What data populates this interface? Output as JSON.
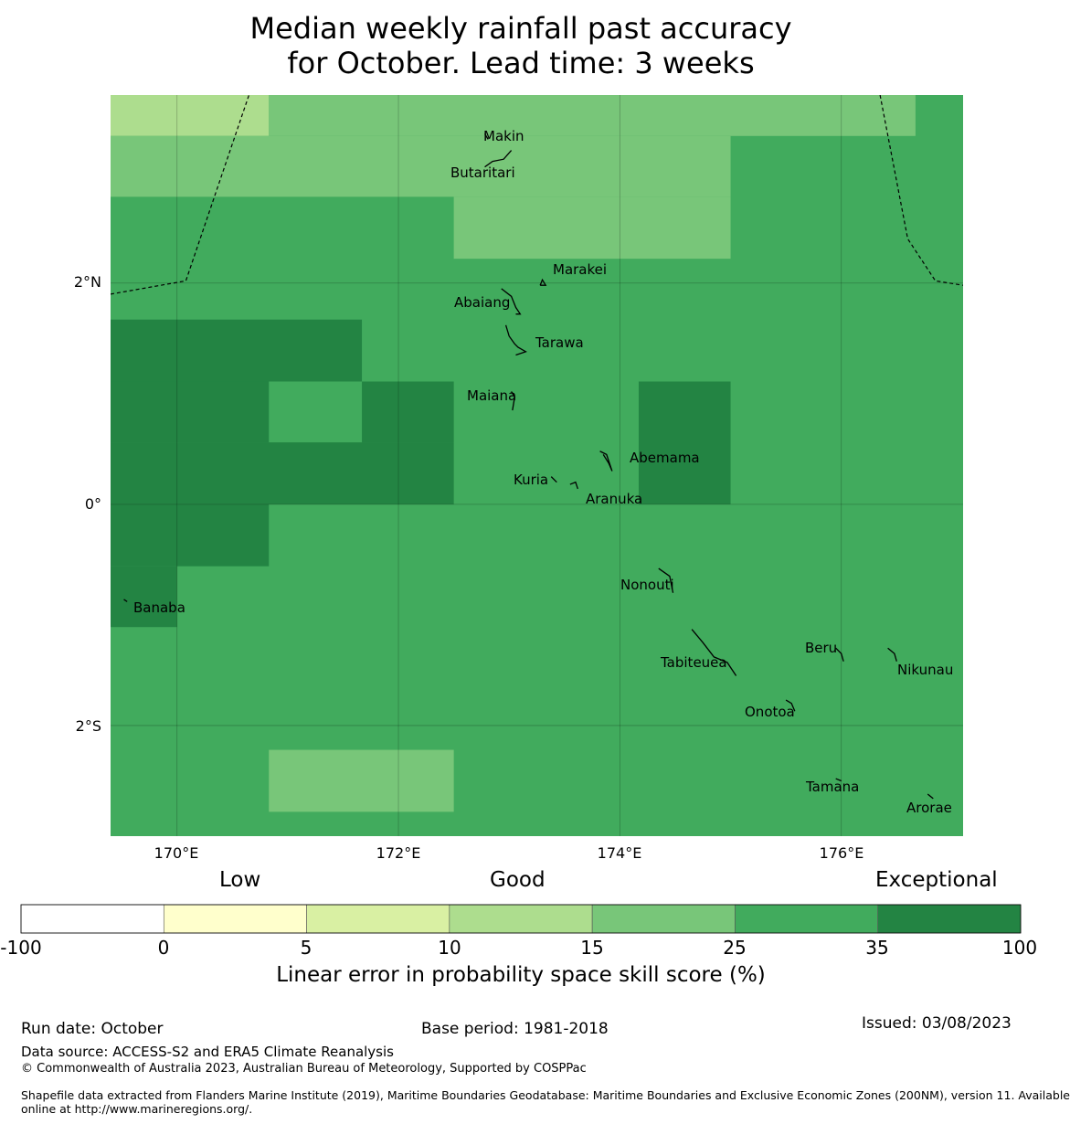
{
  "title": {
    "line1": "Median weekly rainfall past accuracy",
    "line2": "for October. Lead time: 3 weeks"
  },
  "map": {
    "lon_range": [
      169.4,
      177.1
    ],
    "lat_range": [
      -3.0,
      3.7
    ],
    "grid_step_deg": 0.556,
    "x_ticks": [
      {
        "lon": 170,
        "label": "170°E"
      },
      {
        "lon": 172,
        "label": "172°E"
      },
      {
        "lon": 174,
        "label": "174°E"
      },
      {
        "lon": 176,
        "label": "176°E"
      }
    ],
    "y_ticks": [
      {
        "lat": 2,
        "label": "2°N"
      },
      {
        "lat": 0,
        "label": "0°"
      },
      {
        "lat": -2,
        "label": "2°S"
      }
    ],
    "skill_cells": [
      {
        "lon_range": [
          169.4,
          177.1
        ],
        "lat_range": [
          -3.0,
          3.7
        ],
        "category": "25-35"
      },
      {
        "lon_range": [
          169.4,
          170.83
        ],
        "lat_range": [
          3.33,
          3.7
        ],
        "category": "10-15"
      },
      {
        "lon_range": [
          170.83,
          176.67
        ],
        "lat_range": [
          3.33,
          3.7
        ],
        "category": "15-25"
      },
      {
        "lon_range": [
          169.4,
          175.0
        ],
        "lat_range": [
          2.78,
          3.33
        ],
        "category": "15-25"
      },
      {
        "lon_range": [
          172.5,
          175.0
        ],
        "lat_range": [
          2.22,
          2.78
        ],
        "category": "15-25"
      },
      {
        "lon_range": [
          169.4,
          171.67
        ],
        "lat_range": [
          1.11,
          1.67
        ],
        "category": "35-100"
      },
      {
        "lon_range": [
          169.4,
          170.83
        ],
        "lat_range": [
          0.56,
          1.11
        ],
        "category": "35-100"
      },
      {
        "lon_range": [
          171.67,
          172.5
        ],
        "lat_range": [
          0.56,
          1.11
        ],
        "category": "35-100"
      },
      {
        "lon_range": [
          169.4,
          172.5
        ],
        "lat_range": [
          0.0,
          0.56
        ],
        "category": "35-100"
      },
      {
        "lon_range": [
          174.17,
          175.0
        ],
        "lat_range": [
          0.0,
          1.11
        ],
        "category": "35-100"
      },
      {
        "lon_range": [
          169.4,
          170.83
        ],
        "lat_range": [
          -0.56,
          0.0
        ],
        "category": "35-100"
      },
      {
        "lon_range": [
          169.4,
          170.0
        ],
        "lat_range": [
          -1.11,
          -0.56
        ],
        "category": "35-100"
      },
      {
        "lon_range": [
          170.83,
          172.5
        ],
        "lat_range": [
          -2.78,
          -2.22
        ],
        "category": "15-25"
      }
    ],
    "eez_boundaries": [
      [
        [
          169.4,
          1.9
        ],
        [
          170.08,
          2.02
        ],
        [
          170.65,
          3.7
        ]
      ],
      [
        [
          176.35,
          3.7
        ],
        [
          176.6,
          2.4
        ],
        [
          176.85,
          2.02
        ],
        [
          177.1,
          1.98
        ]
      ]
    ],
    "islands": [
      {
        "name": "Makin",
        "lon": 172.78,
        "lat": 3.32,
        "shape": [
          [
            172.78,
            3.35
          ],
          [
            172.81,
            3.3
          ]
        ]
      },
      {
        "name": "Butaritari",
        "lon": 172.95,
        "lat": 3.07,
        "shape": [
          [
            172.78,
            3.05
          ],
          [
            172.85,
            3.1
          ],
          [
            172.95,
            3.12
          ],
          [
            173.02,
            3.2
          ]
        ]
      },
      {
        "name": "Marakei",
        "lon": 173.28,
        "lat": 2.0,
        "shape": [
          [
            173.28,
            1.98
          ],
          [
            173.3,
            2.03
          ],
          [
            173.33,
            1.98
          ],
          [
            173.28,
            1.98
          ]
        ]
      },
      {
        "name": "Abaiang",
        "lon": 172.95,
        "lat": 1.83,
        "shape": [
          [
            172.93,
            1.95
          ],
          [
            173.02,
            1.88
          ],
          [
            173.06,
            1.78
          ],
          [
            173.1,
            1.72
          ],
          [
            173.06,
            1.72
          ]
        ]
      },
      {
        "name": "Tarawa",
        "lon": 173.1,
        "lat": 1.42,
        "shape": [
          [
            172.97,
            1.62
          ],
          [
            173.0,
            1.52
          ],
          [
            173.05,
            1.45
          ],
          [
            173.08,
            1.42
          ],
          [
            173.15,
            1.38
          ],
          [
            173.06,
            1.35
          ]
        ]
      },
      {
        "name": "Maiana",
        "lon": 173.0,
        "lat": 0.95,
        "shape": [
          [
            173.02,
            1.02
          ],
          [
            173.05,
            0.97
          ],
          [
            173.03,
            0.85
          ]
        ]
      },
      {
        "name": "Abemama",
        "lon": 173.85,
        "lat": 0.4,
        "shape": [
          [
            173.82,
            0.48
          ],
          [
            173.88,
            0.45
          ],
          [
            173.93,
            0.3
          ],
          [
            173.9,
            0.37
          ],
          [
            173.85,
            0.45
          ]
        ]
      },
      {
        "name": "Kuria",
        "lon": 173.4,
        "lat": 0.23,
        "shape": [
          [
            173.38,
            0.25
          ],
          [
            173.43,
            0.2
          ]
        ]
      },
      {
        "name": "Aranuka",
        "lon": 173.6,
        "lat": 0.18,
        "shape": [
          [
            173.55,
            0.18
          ],
          [
            173.6,
            0.2
          ],
          [
            173.62,
            0.14
          ]
        ]
      },
      {
        "name": "Nonouti",
        "lon": 174.45,
        "lat": -0.65,
        "shape": [
          [
            174.35,
            -0.58
          ],
          [
            174.45,
            -0.65
          ],
          [
            174.48,
            -0.8
          ]
        ]
      },
      {
        "name": "Banaba",
        "lon": 169.53,
        "lat": -0.87,
        "shape": [
          [
            169.52,
            -0.86
          ],
          [
            169.55,
            -0.88
          ]
        ]
      },
      {
        "name": "Tabiteuea",
        "lon": 174.9,
        "lat": -1.3,
        "shape": [
          [
            174.65,
            -1.13
          ],
          [
            174.75,
            -1.25
          ],
          [
            174.85,
            -1.38
          ],
          [
            174.97,
            -1.43
          ],
          [
            175.05,
            -1.55
          ]
        ]
      },
      {
        "name": "Beru",
        "lon": 175.98,
        "lat": -1.33,
        "shape": [
          [
            175.95,
            -1.3
          ],
          [
            176.0,
            -1.35
          ],
          [
            176.02,
            -1.42
          ]
        ]
      },
      {
        "name": "Nikunau",
        "lon": 176.45,
        "lat": -1.35,
        "shape": [
          [
            176.42,
            -1.3
          ],
          [
            176.48,
            -1.35
          ],
          [
            176.5,
            -1.42
          ]
        ]
      },
      {
        "name": "Onotoa",
        "lon": 175.55,
        "lat": -1.8,
        "shape": [
          [
            175.5,
            -1.77
          ],
          [
            175.55,
            -1.8
          ],
          [
            175.58,
            -1.87
          ]
        ]
      },
      {
        "name": "Tamana",
        "lon": 175.97,
        "lat": -2.5,
        "shape": [
          [
            175.95,
            -2.48
          ],
          [
            176.0,
            -2.5
          ]
        ]
      },
      {
        "name": "Arorae",
        "lon": 176.82,
        "lat": -2.63,
        "shape": [
          [
            176.78,
            -2.62
          ],
          [
            176.83,
            -2.66
          ]
        ]
      }
    ]
  },
  "colorbar": {
    "ticks": [
      "-100",
      "0",
      "5",
      "10",
      "15",
      "25",
      "35",
      "100"
    ],
    "bins": [
      {
        "range": "-100-0",
        "color": "#ffffff"
      },
      {
        "range": "0-5",
        "color": "#ffffcc"
      },
      {
        "range": "5-10",
        "color": "#d9f0a3"
      },
      {
        "range": "10-15",
        "color": "#addd8e"
      },
      {
        "range": "15-25",
        "color": "#78c679"
      },
      {
        "range": "25-35",
        "color": "#41ab5d"
      },
      {
        "range": "35-100",
        "color": "#238443"
      }
    ],
    "top_labels": {
      "low": "Low",
      "good": "Good",
      "exceptional": "Exceptional"
    },
    "label": "Linear error in probability space skill score (%)"
  },
  "footer": {
    "run_date": "Run date: October",
    "base_period": "Base period: 1981-2018",
    "issued": "Issued: 03/08/2023",
    "data_source": "Data source: ACCESS-S2 and ERA5 Climate Reanalysis",
    "copyright": "© Commonwealth of Australia 2023, Australian Bureau of Meteorology, Supported by COSPPac",
    "shapefile_line1": "Shapefile data extracted from Flanders Marine Institute (2019), Maritime Boundaries Geodatabase: Maritime Boundaries and Exclusive Economic Zones (200NM), version 11. Available",
    "shapefile_line2": "online at http://www.marineregions.org/."
  }
}
